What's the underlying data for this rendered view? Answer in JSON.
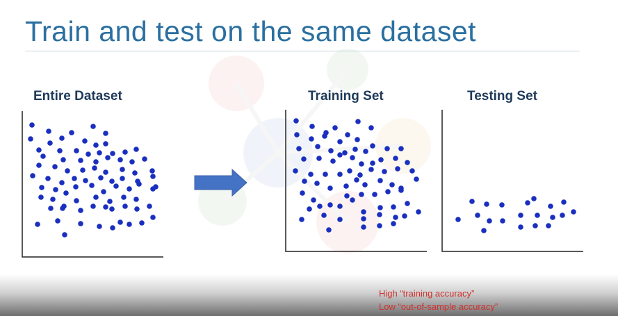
{
  "title": "Train and test on the same dataset",
  "panels": {
    "entire": "Entire Dataset",
    "training": "Training Set",
    "testing": "Testing Set"
  },
  "notes": {
    "line1": "High “training accuracy”",
    "line2": "Low “out-of-sample accuracy”"
  },
  "colors": {
    "title": "#2a6fa0",
    "label": "#1f3a5a",
    "dot": "#1a2fbf",
    "arrow": "#4472c4",
    "note": "#d0312d"
  },
  "icons": {
    "arrow": "right-arrow-icon"
  }
}
